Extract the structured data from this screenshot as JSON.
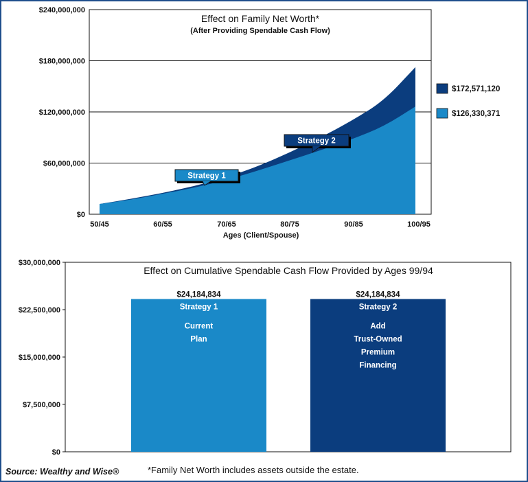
{
  "colors": {
    "strategy1": "#1a89c8",
    "strategy2": "#0b3d7e",
    "grid": "#111111"
  },
  "chart_data": [
    {
      "type": "area",
      "title": "Effect on Family Net Worth*",
      "subtitle": "(After Providing Spendable Cash Flow)",
      "xlabel": "Ages (Client/Spouse)",
      "ylabel": "",
      "x_ticks": [
        "50/45",
        "60/55",
        "70/65",
        "80/75",
        "90/85",
        "100/95"
      ],
      "y_ticks": [
        "$0",
        "$60,000,000",
        "$120,000,000",
        "$180,000,000",
        "$240,000,000"
      ],
      "ylim": [
        0,
        240000000
      ],
      "x": [
        50,
        55,
        60,
        65,
        70,
        75,
        80,
        85,
        90,
        95,
        100
      ],
      "series": [
        {
          "name": "Strategy 2",
          "values": [
            12000000,
            18000000,
            25000000,
            33000000,
            43000000,
            56000000,
            72000000,
            90000000,
            110000000,
            133000000,
            172571120
          ]
        },
        {
          "name": "Strategy 1",
          "values": [
            12000000,
            17000000,
            24000000,
            31000000,
            40000000,
            51000000,
            63000000,
            75000000,
            88000000,
            103000000,
            126330371
          ]
        }
      ],
      "end_labels": [
        "$172,571,120",
        "$126,330,371"
      ],
      "callouts": [
        "Strategy 1",
        "Strategy 2"
      ],
      "grid": true
    },
    {
      "type": "bar",
      "title": "Effect on Cumulative Spendable Cash Flow Provided by Ages 99/94",
      "y_ticks": [
        "$0",
        "$7,500,000",
        "$15,000,000",
        "$22,500,000",
        "$30,000,000"
      ],
      "ylim": [
        0,
        30000000
      ],
      "categories": [
        "Strategy 1",
        "Strategy 2"
      ],
      "values": [
        24184834,
        24184834
      ],
      "value_labels": [
        "$24,184,834",
        "$24,184,834"
      ],
      "bar_text": [
        [
          "Strategy 1",
          "Current",
          "Plan"
        ],
        [
          "Strategy 2",
          "Add",
          "Trust-Owned",
          "Premium",
          "Financing"
        ]
      ],
      "grid": false
    }
  ],
  "footer": {
    "source": "Source: Wealthy and Wise®",
    "footnote": "*Family Net Worth includes assets outside the estate."
  }
}
